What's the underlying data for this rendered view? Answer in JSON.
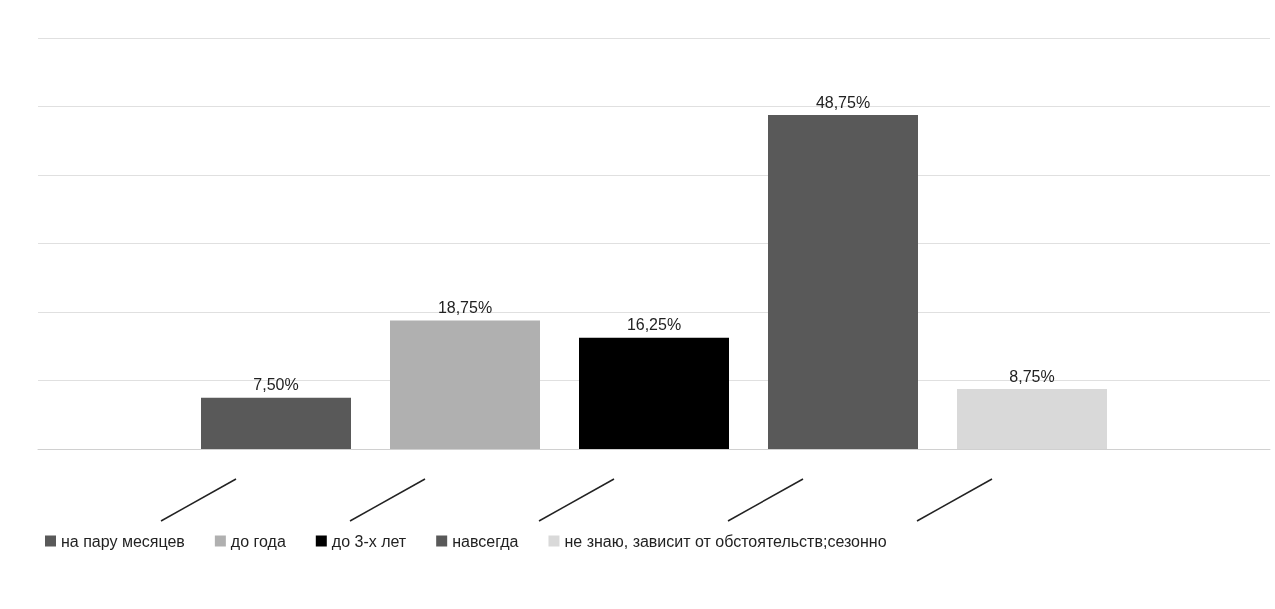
{
  "chart_data": {
    "type": "bar",
    "categories": [
      null
    ],
    "series": [
      {
        "name": "на пару месяцев",
        "color": "#595959",
        "values": [
          7.5
        ],
        "value_labels": [
          "7,50%"
        ]
      },
      {
        "name": "до года",
        "color": "#b0b0b0",
        "values": [
          18.75
        ],
        "value_labels": [
          "18,75%"
        ]
      },
      {
        "name": "до 3-х лет",
        "color": "#000000",
        "values": [
          16.25
        ],
        "value_labels": [
          "16,25%"
        ]
      },
      {
        "name": "навсегда",
        "color": "#595959",
        "values": [
          48.75
        ],
        "value_labels": [
          "48,75%"
        ]
      },
      {
        "name": "не знаю, зависит от обстоятельств;сезонно",
        "color": "#d9d9d9",
        "values": [
          8.75
        ],
        "value_labels": [
          "8,75%"
        ]
      }
    ],
    "ylim": [
      0,
      60
    ],
    "yticks": [
      {
        "value": 0,
        "label": null
      },
      {
        "value": 10,
        "label": null
      },
      {
        "value": 20,
        "label": null
      },
      {
        "value": 30,
        "label": null
      },
      {
        "value": 40,
        "label": null
      },
      {
        "value": 50,
        "label": null
      },
      {
        "value": 60,
        "label": null
      }
    ],
    "grid": "y",
    "legend": "bottom"
  }
}
